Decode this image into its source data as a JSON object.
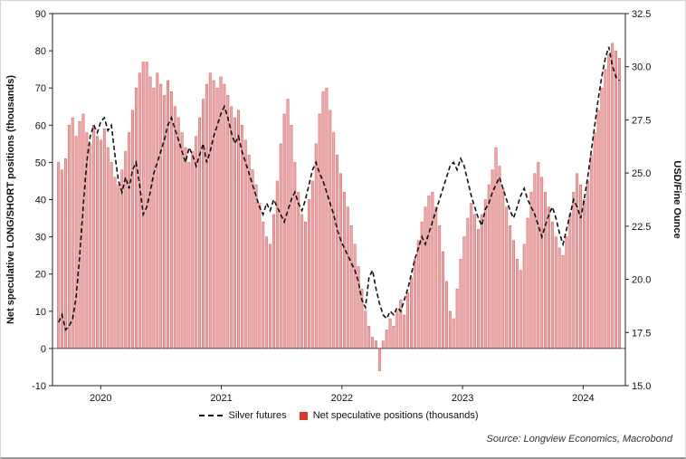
{
  "source": "Source: Longview Economics, Macrobond",
  "chart_data": {
    "type": "bar",
    "title": "",
    "x_min": 2019.6,
    "x_max": 2024.35,
    "x_start": 2019.65,
    "x_step": 0.02925,
    "x_tick_years": [
      2020,
      2021,
      2022,
      2023,
      2024
    ],
    "left_axis": {
      "label": "Net speculative LONG/SHORT positions (thousands)",
      "min": -10,
      "max": 90,
      "ticks": [
        90,
        80,
        70,
        60,
        50,
        40,
        30,
        20,
        10,
        0,
        -10
      ]
    },
    "right_axis": {
      "label": "USD/Fine Ounce",
      "min": 15,
      "max": 32.5,
      "ticks": [
        32.5,
        30.0,
        27.5,
        25.0,
        22.5,
        20.0,
        17.5,
        15.0
      ]
    },
    "series": [
      {
        "name": "Net speculative positions (thousands)",
        "type": "bar",
        "axis": "left",
        "color_fill": "#f0a8a8",
        "color_stroke": "#c75b5b",
        "values": [
          50,
          48,
          51,
          60,
          62,
          57,
          61,
          63,
          58,
          55,
          60,
          57,
          56,
          59,
          54,
          50,
          46,
          44,
          48,
          53,
          58,
          64,
          70,
          74,
          77,
          77,
          73,
          70,
          74,
          71,
          68,
          72,
          69,
          65,
          62,
          58,
          54,
          50,
          53,
          57,
          62,
          67,
          71,
          74,
          72,
          70,
          73,
          71,
          68,
          65,
          62,
          64,
          60,
          56,
          52,
          48,
          44,
          39,
          34,
          30,
          28,
          36,
          45,
          55,
          63,
          67,
          60,
          50,
          42,
          36,
          34,
          40,
          45,
          55,
          63,
          69,
          70,
          64,
          58,
          52,
          47,
          42,
          38,
          33,
          28,
          22,
          16,
          10,
          6,
          3,
          2,
          -6,
          2,
          5,
          8,
          6,
          10,
          13,
          9,
          15,
          19,
          24,
          29,
          34,
          38,
          41,
          42,
          38,
          33,
          26,
          18,
          10,
          8,
          16,
          24,
          30,
          35,
          39,
          36,
          32,
          36,
          40,
          44,
          48,
          54,
          49,
          43,
          38,
          33,
          29,
          24,
          21,
          28,
          35,
          42,
          47,
          50,
          46,
          42,
          38,
          34,
          30,
          27,
          25,
          30,
          36,
          42,
          47,
          44,
          40,
          45,
          52,
          58,
          64,
          70,
          75,
          79,
          82,
          80,
          78
        ]
      },
      {
        "name": "Silver futures",
        "type": "line",
        "axis": "right",
        "color": "#111111",
        "dash": "5 3",
        "values": [
          17.98,
          18.33,
          17.63,
          17.8,
          18.15,
          19.2,
          21.13,
          23.4,
          25.5,
          26.73,
          27.25,
          26.9,
          27.43,
          27.6,
          27.0,
          27.25,
          25.85,
          24.63,
          24.1,
          24.8,
          24.28,
          25.15,
          25.5,
          24.45,
          23.05,
          23.4,
          24.1,
          24.98,
          25.5,
          26.03,
          26.55,
          27.25,
          27.6,
          27.08,
          26.55,
          26.03,
          25.5,
          26.2,
          25.85,
          25.33,
          25.85,
          26.38,
          25.5,
          26.03,
          26.73,
          27.25,
          27.78,
          28.13,
          27.6,
          26.9,
          26.38,
          26.73,
          26.03,
          25.5,
          24.98,
          24.45,
          23.93,
          23.4,
          23.05,
          23.58,
          23.23,
          23.75,
          23.4,
          23.05,
          22.7,
          23.23,
          23.75,
          24.1,
          23.58,
          23.23,
          23.75,
          24.45,
          25.15,
          25.5,
          24.98,
          24.63,
          24.1,
          23.58,
          23.05,
          22.35,
          21.83,
          21.48,
          21.13,
          20.78,
          20.43,
          19.9,
          19.03,
          18.68,
          20.08,
          20.43,
          19.55,
          18.85,
          18.33,
          18.15,
          18.5,
          18.33,
          18.68,
          18.5,
          19.03,
          19.55,
          20.25,
          20.95,
          21.48,
          22.0,
          21.65,
          22.18,
          22.7,
          23.23,
          23.75,
          24.28,
          24.8,
          25.33,
          25.5,
          25.15,
          25.68,
          25.33,
          24.63,
          23.93,
          23.4,
          22.88,
          22.53,
          23.3,
          23.58,
          24.1,
          24.45,
          24.8,
          24.28,
          23.75,
          23.23,
          22.88,
          23.4,
          23.93,
          24.28,
          23.75,
          23.4,
          23.05,
          22.53,
          22.0,
          22.53,
          23.05,
          23.4,
          22.88,
          22.18,
          21.65,
          22.35,
          23.05,
          23.75,
          23.4,
          22.88,
          23.75,
          24.8,
          26.03,
          27.25,
          28.48,
          29.53,
          30.4,
          30.93,
          30.05,
          29.53,
          29.35
        ]
      }
    ],
    "grid": false,
    "legend_position": "bottom-center"
  }
}
